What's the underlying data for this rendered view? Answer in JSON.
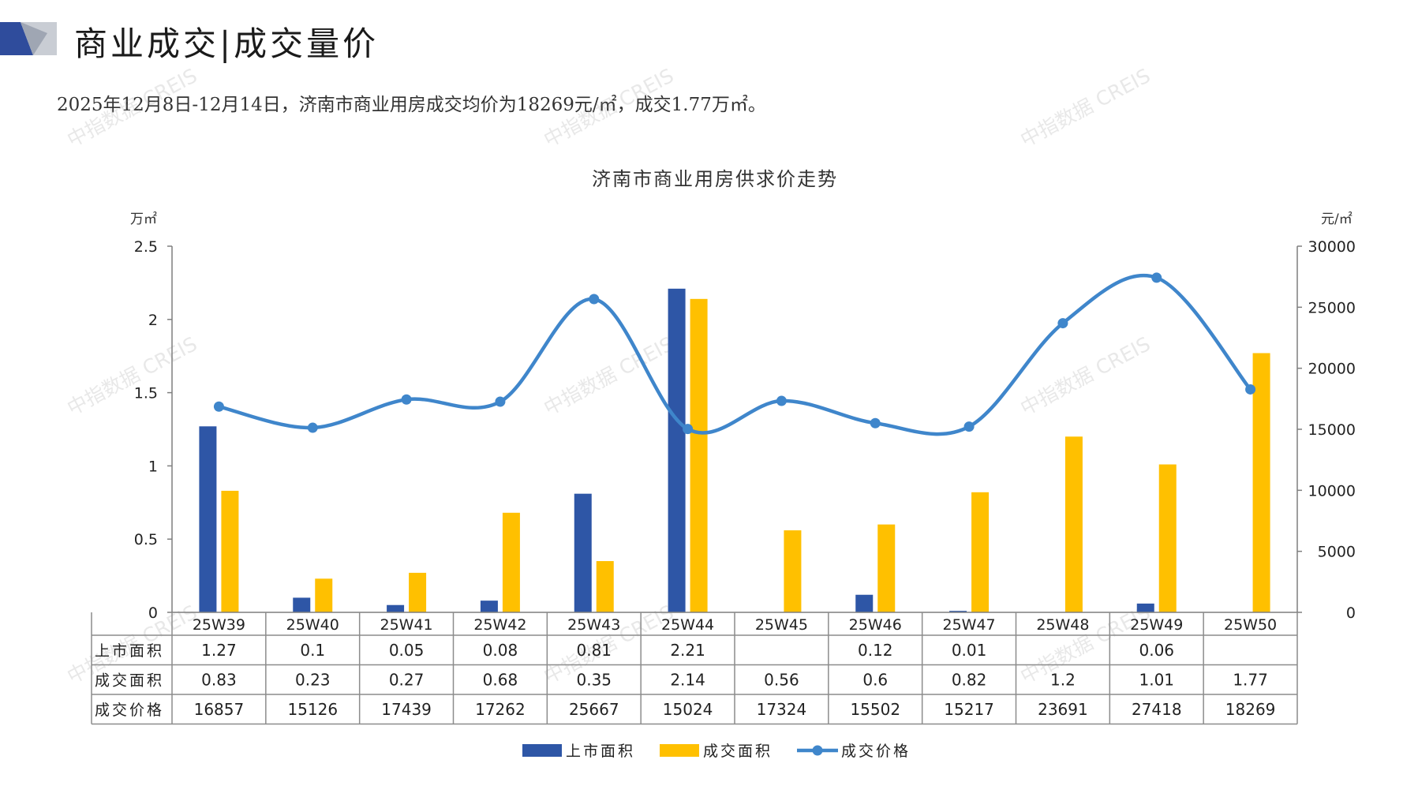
{
  "header": {
    "title": "商业成交|成交量价",
    "summary": "2025年12月8日-12月14日，济南市商业用房成交均价为18269元/㎡，成交1.77万㎡。"
  },
  "watermark": "中指数据 CREIS",
  "colors": {
    "supply": "#2E56A6",
    "deal": "#FFC000",
    "price": "#3F86CB",
    "axis": "#7f7f7f",
    "logo_blue": "#2F4C9C",
    "logo_gray": "#9FA6B3"
  },
  "chart_data": {
    "type": "bar",
    "title": "济南市商业用房供求价走势",
    "y_left_unit": "万㎡",
    "y_right_unit": "元/㎡",
    "ylim_left": [
      0,
      2.5
    ],
    "ylim_right": [
      0,
      30000
    ],
    "y_left_ticks": [
      "0",
      "0.5",
      "1",
      "1.5",
      "2",
      "2.5"
    ],
    "y_right_ticks": [
      "0",
      "5000",
      "10000",
      "15000",
      "20000",
      "25000",
      "30000"
    ],
    "grid": false,
    "legend_position": "bottom",
    "categories": [
      "25W39",
      "25W40",
      "25W41",
      "25W42",
      "25W43",
      "25W44",
      "25W45",
      "25W46",
      "25W47",
      "25W48",
      "25W49",
      "25W50"
    ],
    "series": [
      {
        "name": "上市面积",
        "type": "bar",
        "axis": "left",
        "values": [
          1.27,
          0.1,
          0.05,
          0.08,
          0.81,
          2.21,
          null,
          0.12,
          0.01,
          null,
          0.06,
          null
        ],
        "labels": [
          "1.27",
          "0.1",
          "0.05",
          "0.08",
          "0.81",
          "2.21",
          "",
          "0.12",
          "0.01",
          "",
          "0.06",
          ""
        ]
      },
      {
        "name": "成交面积",
        "type": "bar",
        "axis": "left",
        "values": [
          0.83,
          0.23,
          0.27,
          0.68,
          0.35,
          2.14,
          0.56,
          0.6,
          0.82,
          1.2,
          1.01,
          1.77
        ],
        "labels": [
          "0.83",
          "0.23",
          "0.27",
          "0.68",
          "0.35",
          "2.14",
          "0.56",
          "0.6",
          "0.82",
          "1.2",
          "1.01",
          "1.77"
        ]
      },
      {
        "name": "成交价格",
        "type": "line",
        "axis": "right",
        "values": [
          16857,
          15126,
          17439,
          17262,
          25667,
          15024,
          17324,
          15502,
          15217,
          23691,
          27418,
          18269
        ],
        "labels": [
          "16857",
          "15126",
          "17439",
          "17262",
          "25667",
          "15024",
          "17324",
          "15502",
          "15217",
          "23691",
          "27418",
          "18269"
        ]
      }
    ]
  }
}
